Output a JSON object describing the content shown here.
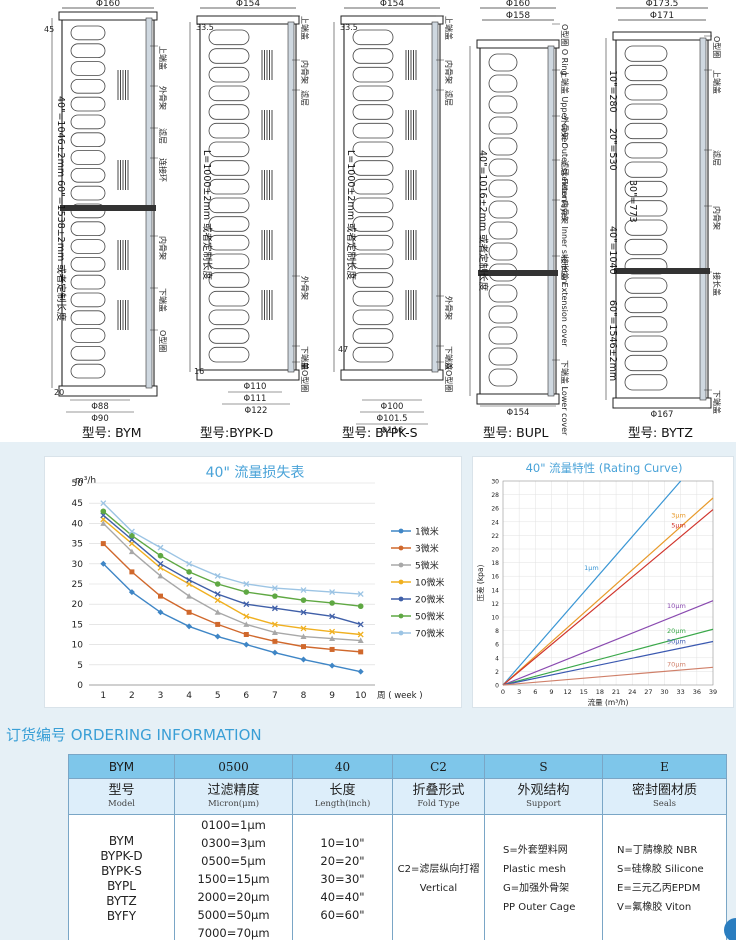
{
  "drawings": {
    "bym": {
      "model_caption": "型号: BYM",
      "dims": [
        "Φ160",
        "45",
        "40\"=1046±2mm  60\"=1538±2mm  或者定制长度",
        "20",
        "Φ88",
        "Φ90"
      ],
      "labels": [
        "上端盖",
        "外骨架",
        "滤层",
        "连接环",
        "内骨架",
        "下端盖",
        "O型圈"
      ]
    },
    "bypkd": {
      "model_caption": "型号:BYPK-D",
      "dims": [
        "Φ154",
        "33.5",
        "L=1000±2mm  或者定制长度",
        "16",
        "Φ110",
        "Φ111",
        "Φ122"
      ],
      "labels": [
        "上端盖",
        "内骨架",
        "滤层",
        "外骨架",
        "下端盖",
        "单O型圈"
      ]
    },
    "bypks": {
      "model_caption": "型号: BYPK-S",
      "dims": [
        "Φ154",
        "33.5",
        "L=1000±2mm  或者定制长度",
        "47",
        "Φ100",
        "Φ101.5",
        "Φ116"
      ],
      "labels": [
        "上端盖",
        "内骨架",
        "滤层",
        "外骨架",
        "下端盖",
        "双O型圈"
      ]
    },
    "bupl": {
      "model_caption": "型号: BUPL",
      "dims": [
        "Φ160",
        "Φ158",
        "40\"=1016±2mm  或者定制长度",
        "Φ154"
      ],
      "labels": [
        "O型圈 O Ring",
        "上端盖 Upper cover",
        "外骨架 Outer skeleton",
        "滤层 Filter layer",
        "内骨架 Inner skeleton",
        "接长盖 Extension cover",
        "下端盖 Lower cover"
      ]
    },
    "bytz": {
      "model_caption": "型号: BYTZ",
      "dims": [
        "Φ173.5",
        "Φ171",
        "10\"=280",
        "20\"=530",
        "30\"=773",
        "40\"=1040",
        "60\"=1546±2mm",
        "Φ167"
      ],
      "labels": [
        "O型圈",
        "上端盖",
        "滤层",
        "内骨架",
        "接长盖",
        "下端盖"
      ]
    }
  },
  "charts": {
    "loss": {
      "title": "40\" 流量损失表",
      "ylabel": "m³/h",
      "xlabel": "周 ( week )"
    },
    "rating": {
      "title": "40\" 流量特性 (Rating Curve)",
      "ylabel": "压差 (kpa)",
      "xlabel": "流量 (m³/h)"
    }
  },
  "chart_data": [
    {
      "type": "line",
      "title": "40\" 流量损失表",
      "ylabel": "m³/h",
      "xlabel": "周 ( week )",
      "x": [
        1,
        2,
        3,
        4,
        5,
        6,
        7,
        8,
        9,
        10
      ],
      "ylim": [
        0,
        50
      ],
      "yticks": [
        0,
        5,
        10,
        15,
        20,
        25,
        30,
        35,
        40,
        45,
        50
      ],
      "grid": true,
      "legend": "right",
      "series": [
        {
          "name": "1微米",
          "color": "#3f86c6",
          "marker": "diamond",
          "values": [
            30,
            23,
            18,
            14.5,
            12,
            10,
            8,
            6.3,
            4.8,
            3.3
          ]
        },
        {
          "name": "3微米",
          "color": "#d0682c",
          "marker": "square",
          "values": [
            35,
            28,
            22,
            18,
            15,
            12.5,
            10.8,
            9.5,
            8.8,
            8.2
          ]
        },
        {
          "name": "5微米",
          "color": "#a8a8a8",
          "marker": "triangle",
          "values": [
            40,
            33,
            27,
            22,
            18,
            15,
            13,
            12,
            11.5,
            11
          ]
        },
        {
          "name": "10微米",
          "color": "#f0b020",
          "marker": "x",
          "values": [
            41,
            35,
            29,
            25,
            21,
            17,
            15,
            14,
            13.2,
            12.5
          ]
        },
        {
          "name": "20微米",
          "color": "#3f5fa8",
          "marker": "x",
          "values": [
            42,
            36,
            30,
            26,
            22.5,
            20,
            19,
            18,
            17,
            15
          ]
        },
        {
          "name": "50微米",
          "color": "#5fa843",
          "marker": "circle",
          "values": [
            43,
            37,
            32,
            28,
            25,
            23,
            22,
            21,
            20.3,
            19.5
          ]
        },
        {
          "name": "70微米",
          "color": "#9cc4e4",
          "marker": "plus",
          "values": [
            45,
            38,
            34,
            30,
            27,
            25,
            24,
            23.5,
            23,
            22.5
          ]
        }
      ]
    },
    {
      "type": "line",
      "title": "40\" 流量特性 (Rating Curve)",
      "ylabel": "压差 (kpa)",
      "xlabel": "流量 (m³/h)",
      "xlim": [
        0,
        39
      ],
      "ylim": [
        0,
        30
      ],
      "xticks": [
        0,
        3,
        6,
        9,
        12,
        15,
        18,
        21,
        24,
        27,
        30,
        33,
        36,
        39
      ],
      "yticks": [
        0,
        2,
        4,
        6,
        8,
        10,
        12,
        14,
        16,
        18,
        20,
        22,
        24,
        26,
        28,
        30
      ],
      "grid": true,
      "series": [
        {
          "name": "1μm",
          "color": "#3a96d4",
          "x": [
            0,
            33
          ],
          "y": [
            0,
            30
          ]
        },
        {
          "name": "3μm",
          "color": "#e89a2a",
          "x": [
            0,
            39
          ],
          "y": [
            0,
            27.5
          ]
        },
        {
          "name": "5μm",
          "color": "#d0342c",
          "x": [
            0,
            39
          ],
          "y": [
            0,
            25.8
          ]
        },
        {
          "name": "10μm",
          "color": "#8a4ab0",
          "x": [
            0,
            39
          ],
          "y": [
            0,
            12.4
          ]
        },
        {
          "name": "20μm",
          "color": "#3aa84a",
          "x": [
            0,
            39
          ],
          "y": [
            0,
            8.2
          ]
        },
        {
          "name": "50μm",
          "color": "#3a58b0",
          "x": [
            0,
            39
          ],
          "y": [
            0,
            6.4
          ]
        },
        {
          "name": "70μm",
          "color": "#d0806a",
          "x": [
            0,
            39
          ],
          "y": [
            0,
            2.6
          ]
        }
      ]
    }
  ],
  "ordering": {
    "title": "订货编号 ORDERING INFORMATION",
    "codes": [
      "BYM",
      "0500",
      "40",
      "C2",
      "S",
      "E"
    ],
    "headers": [
      {
        "zh": "型号",
        "en": "Model"
      },
      {
        "zh": "过滤精度",
        "en": "Micron(μm)"
      },
      {
        "zh": "长度",
        "en": "Length(inch)"
      },
      {
        "zh": "折叠形式",
        "en": "Fold Type"
      },
      {
        "zh": "外观结构",
        "en": "Support"
      },
      {
        "zh": "密封圈材质",
        "en": "Seals"
      }
    ],
    "model": [
      "BYM",
      "BYPK-D",
      "BYPK-S",
      "BYPL",
      "BYTZ",
      "BYFY"
    ],
    "micron": [
      "0100=1μm",
      "0300=3μm",
      "0500=5μm",
      "1500=15μm",
      "2000=20μm",
      "5000=50μm",
      "7000=70μm"
    ],
    "length": [
      "10=10\"",
      "20=20\"",
      "30=30\"",
      "40=40\"",
      "60=60\""
    ],
    "fold": [
      "C2=滤层纵向打褶",
      "Vertical"
    ],
    "support": [
      "S=外套塑料网",
      "Plastic mesh",
      "G=加强外骨架",
      "PP Outer Cage"
    ],
    "seals": [
      "N=丁腈橡胶 NBR",
      "S=硅橡胶 Silicone",
      "E=三元乙丙EPDM",
      "V=氟橡胶 Viton"
    ]
  }
}
